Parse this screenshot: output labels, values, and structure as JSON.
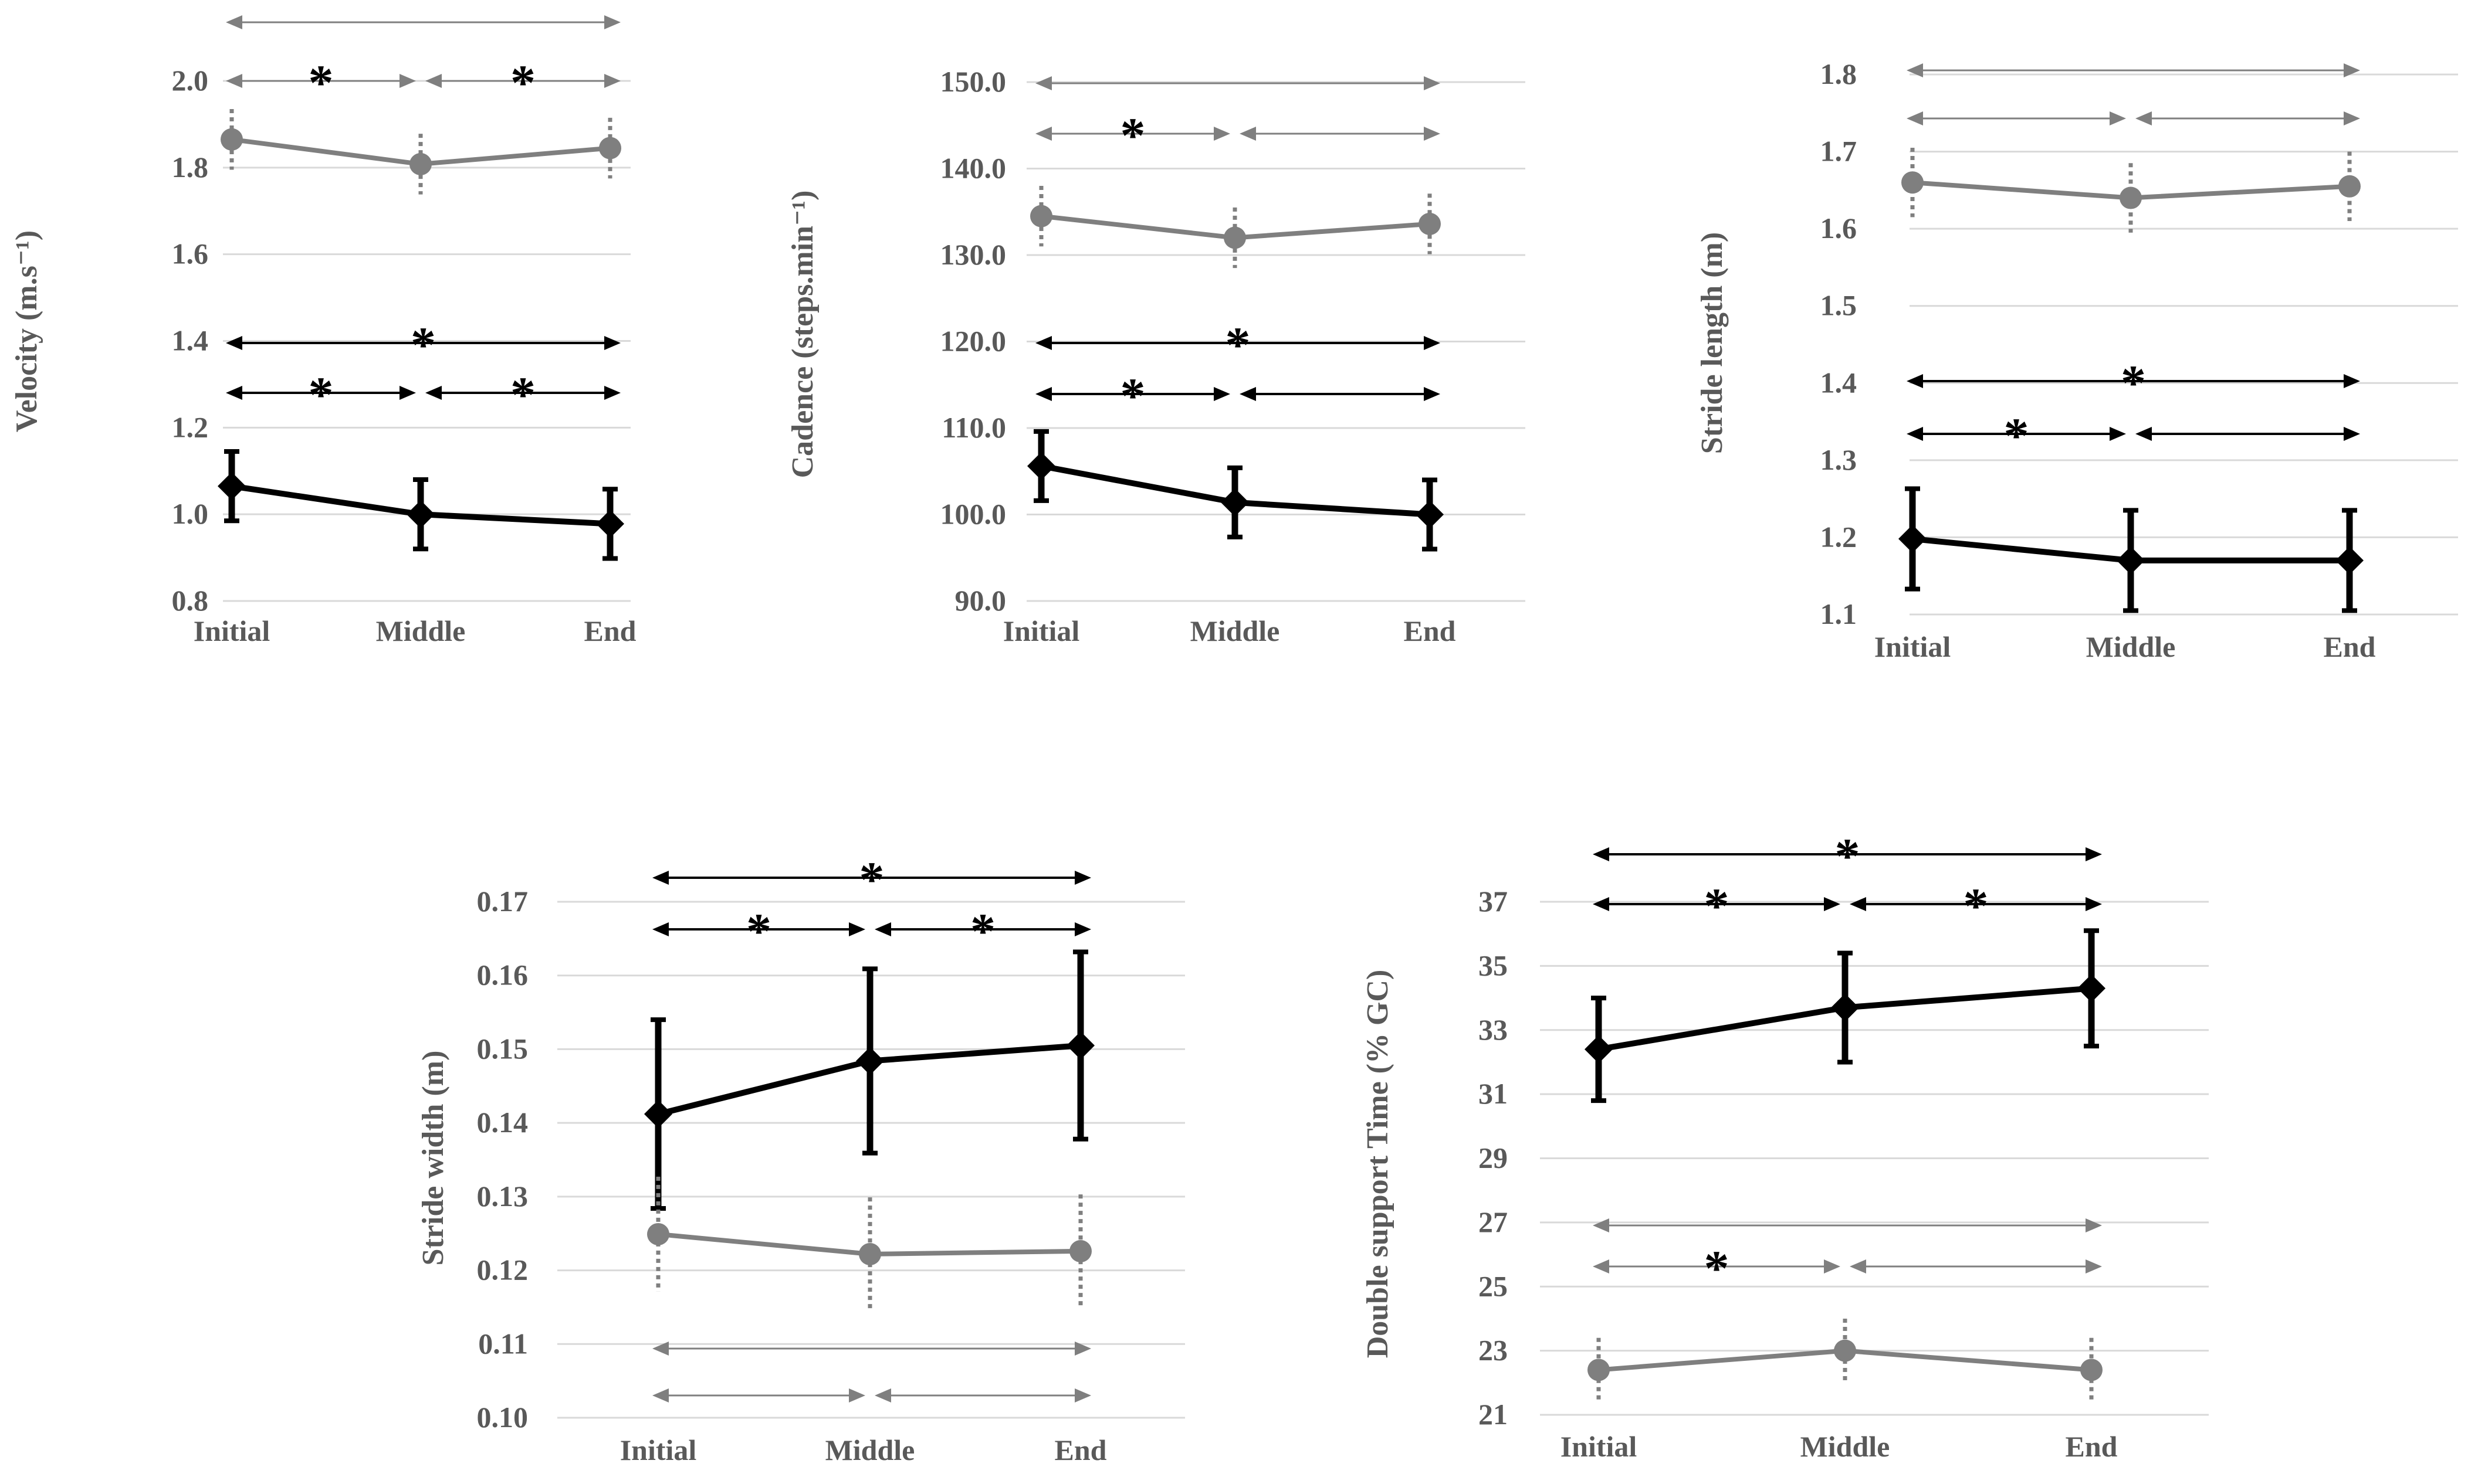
{
  "chart_data": [
    {
      "id": "velocity",
      "type": "line",
      "ylabel": "Velocity (m.s⁻¹)",
      "categories": [
        "Initial",
        "Middle",
        "End"
      ],
      "yticks": [
        "0.8",
        "1.0",
        "1.2",
        "1.4",
        "1.6",
        "1.8",
        "2.0"
      ],
      "ylim": [
        0.8,
        2.0
      ],
      "series": [
        {
          "name": "black",
          "values": [
            1.065,
            1.0,
            0.978
          ],
          "error": [
            0.08,
            0.08,
            0.08
          ]
        },
        {
          "name": "gray",
          "values": [
            1.865,
            1.808,
            1.845
          ],
          "error": [
            0.07,
            0.07,
            0.07
          ]
        }
      ],
      "comparisons": [
        {
          "series": "gray",
          "from": 0,
          "to": 2,
          "level": 1,
          "star": ""
        },
        {
          "series": "gray",
          "from": 0,
          "to": 1,
          "level": 0,
          "star": "*"
        },
        {
          "series": "gray",
          "from": 1,
          "to": 2,
          "level": 0,
          "star": "*"
        },
        {
          "series": "black",
          "from": 0,
          "to": 2,
          "level": 1,
          "star": "*"
        },
        {
          "series": "black",
          "from": 0,
          "to": 1,
          "level": 0,
          "star": "*"
        },
        {
          "series": "black",
          "from": 1,
          "to": 2,
          "level": 0,
          "star": "*"
        }
      ]
    },
    {
      "id": "cadence",
      "type": "line",
      "ylabel": "Cadence (steps.min⁻¹)",
      "categories": [
        "Initial",
        "Middle",
        "End"
      ],
      "yticks": [
        "90.0",
        "100.0",
        "110.0",
        "120.0",
        "130.0",
        "140.0",
        "150.0"
      ],
      "ylim": [
        90,
        150
      ],
      "series": [
        {
          "name": "black",
          "values": [
            105.6,
            101.4,
            100.0
          ],
          "error": [
            4.0,
            4.0,
            4.0
          ]
        },
        {
          "name": "gray",
          "values": [
            134.5,
            132.0,
            133.6
          ],
          "error": [
            3.5,
            3.5,
            3.5
          ]
        }
      ],
      "comparisons": [
        {
          "series": "gray",
          "from": 0,
          "to": 2,
          "level": 1,
          "star": ""
        },
        {
          "series": "gray",
          "from": 0,
          "to": 1,
          "level": 0,
          "star": "*"
        },
        {
          "series": "gray",
          "from": 1,
          "to": 2,
          "level": 0,
          "star": ""
        },
        {
          "series": "black",
          "from": 0,
          "to": 2,
          "level": 1,
          "star": "*"
        },
        {
          "series": "black",
          "from": 0,
          "to": 1,
          "level": 0,
          "star": "*"
        },
        {
          "series": "black",
          "from": 1,
          "to": 2,
          "level": 0,
          "star": ""
        }
      ]
    },
    {
      "id": "stride-length",
      "type": "line",
      "ylabel": "Stride length (m)",
      "categories": [
        "Initial",
        "Middle",
        "End"
      ],
      "yticks": [
        "1.1",
        "1.2",
        "1.3",
        "1.4",
        "1.5",
        "1.6",
        "1.7",
        "1.8"
      ],
      "ylim": [
        1.1,
        1.8
      ],
      "series": [
        {
          "name": "black",
          "values": [
            1.198,
            1.17,
            1.17
          ],
          "error": [
            0.065,
            0.065,
            0.065
          ]
        },
        {
          "name": "gray",
          "values": [
            1.66,
            1.64,
            1.655
          ],
          "error": [
            0.045,
            0.045,
            0.045
          ]
        }
      ],
      "comparisons": [
        {
          "series": "gray",
          "from": 0,
          "to": 2,
          "level": 1,
          "star": ""
        },
        {
          "series": "gray",
          "from": 0,
          "to": 1,
          "level": 0,
          "star": ""
        },
        {
          "series": "gray",
          "from": 1,
          "to": 2,
          "level": 0,
          "star": ""
        },
        {
          "series": "black",
          "from": 0,
          "to": 2,
          "level": 1,
          "star": "*"
        },
        {
          "series": "black",
          "from": 0,
          "to": 1,
          "level": 0,
          "star": "*"
        },
        {
          "series": "black",
          "from": 1,
          "to": 2,
          "level": 0,
          "star": ""
        }
      ]
    },
    {
      "id": "stride-width",
      "type": "line",
      "ylabel": "Stride width (m)",
      "categories": [
        "Initial",
        "Middle",
        "End"
      ],
      "yticks": [
        "0.10",
        "0.11",
        "0.12",
        "0.13",
        "0.14",
        "0.15",
        "0.16",
        "0.17"
      ],
      "ylim": [
        0.1,
        0.17
      ],
      "series": [
        {
          "name": "black",
          "values": [
            0.1412,
            0.1484,
            0.1505
          ],
          "error": [
            0.0128,
            0.0125,
            0.0127
          ]
        },
        {
          "name": "gray",
          "values": [
            0.1249,
            0.1222,
            0.1226
          ],
          "error": [
            0.0078,
            0.0077,
            0.0077
          ]
        }
      ],
      "comparisons": [
        {
          "series": "black",
          "from": 0,
          "to": 2,
          "level": 1,
          "star": "*"
        },
        {
          "series": "black",
          "from": 0,
          "to": 1,
          "level": 0,
          "star": "*"
        },
        {
          "series": "black",
          "from": 1,
          "to": 2,
          "level": 0,
          "star": "*"
        },
        {
          "series": "gray",
          "from": 0,
          "to": 2,
          "level": 1,
          "star": ""
        },
        {
          "series": "gray",
          "from": 0,
          "to": 1,
          "level": 0,
          "star": ""
        },
        {
          "series": "gray",
          "from": 1,
          "to": 2,
          "level": 0,
          "star": ""
        }
      ]
    },
    {
      "id": "double-support",
      "type": "line",
      "ylabel": "Double support Time (% GC)",
      "categories": [
        "Initial",
        "Middle",
        "End"
      ],
      "yticks": [
        "21",
        "23",
        "25",
        "27",
        "29",
        "31",
        "33",
        "35",
        "37"
      ],
      "ylim": [
        21,
        37
      ],
      "series": [
        {
          "name": "black",
          "values": [
            32.4,
            33.7,
            34.3
          ],
          "error": [
            1.6,
            1.7,
            1.8
          ]
        },
        {
          "name": "gray",
          "values": [
            22.4,
            23.0,
            22.4
          ],
          "error": [
            1.0,
            1.0,
            1.0
          ]
        }
      ],
      "comparisons": [
        {
          "series": "black",
          "from": 0,
          "to": 2,
          "level": 1,
          "star": "*"
        },
        {
          "series": "black",
          "from": 0,
          "to": 1,
          "level": 0,
          "star": "*"
        },
        {
          "series": "black",
          "from": 1,
          "to": 2,
          "level": 0,
          "star": "*"
        },
        {
          "series": "gray",
          "from": 0,
          "to": 2,
          "level": 1,
          "star": ""
        },
        {
          "series": "gray",
          "from": 0,
          "to": 1,
          "level": 0,
          "star": "*"
        },
        {
          "series": "gray",
          "from": 1,
          "to": 2,
          "level": 0,
          "star": ""
        }
      ]
    }
  ],
  "colors": {
    "black_series": "#000000",
    "gray_series": "#7f7f7f",
    "gridline": "#d9d9d9",
    "tick_text": "#595959"
  }
}
